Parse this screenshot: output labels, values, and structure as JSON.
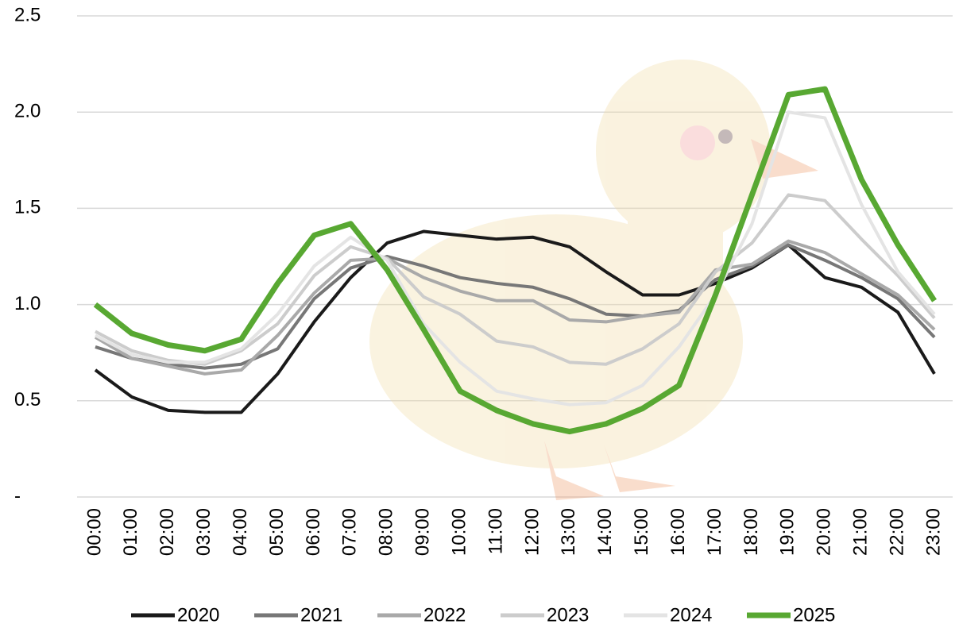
{
  "chart_data": {
    "type": "line",
    "categories": [
      "00:00",
      "01:00",
      "02:00",
      "03:00",
      "04:00",
      "05:00",
      "06:00",
      "07:00",
      "08:00",
      "09:00",
      "10:00",
      "11:00",
      "12:00",
      "13:00",
      "14:00",
      "15:00",
      "16:00",
      "17:00",
      "18:00",
      "19:00",
      "20:00",
      "21:00",
      "22:00",
      "23:00"
    ],
    "series": [
      {
        "name": "2020",
        "color": "#1a1a1a",
        "values": [
          0.66,
          0.52,
          0.45,
          0.44,
          0.44,
          0.64,
          0.91,
          1.14,
          1.32,
          1.38,
          1.36,
          1.34,
          1.35,
          1.3,
          1.17,
          1.05,
          1.05,
          1.11,
          1.19,
          1.31,
          1.14,
          1.09,
          0.96,
          0.64
        ]
      },
      {
        "name": "2021",
        "color": "#777777",
        "values": [
          0.78,
          0.72,
          0.69,
          0.67,
          0.69,
          0.77,
          1.03,
          1.19,
          1.25,
          1.2,
          1.14,
          1.11,
          1.09,
          1.03,
          0.95,
          0.94,
          0.97,
          1.13,
          1.2,
          1.31,
          1.23,
          1.14,
          1.03,
          0.83
        ]
      },
      {
        "name": "2022",
        "color": "#a9a9a9",
        "values": [
          0.83,
          0.72,
          0.68,
          0.64,
          0.66,
          0.84,
          1.06,
          1.23,
          1.24,
          1.14,
          1.07,
          1.02,
          1.02,
          0.92,
          0.91,
          0.94,
          0.96,
          1.18,
          1.21,
          1.33,
          1.27,
          1.16,
          1.05,
          0.87
        ]
      },
      {
        "name": "2023",
        "color": "#cccccc",
        "values": [
          0.86,
          0.76,
          0.71,
          0.69,
          0.76,
          0.9,
          1.15,
          1.3,
          1.24,
          1.04,
          0.95,
          0.81,
          0.78,
          0.7,
          0.69,
          0.77,
          0.9,
          1.17,
          1.32,
          1.57,
          1.54,
          1.34,
          1.15,
          0.93
        ]
      },
      {
        "name": "2024",
        "color": "#e4e4e4",
        "values": [
          0.84,
          0.74,
          0.7,
          0.7,
          0.77,
          0.95,
          1.2,
          1.35,
          1.23,
          0.9,
          0.7,
          0.55,
          0.51,
          0.48,
          0.49,
          0.58,
          0.78,
          1.05,
          1.42,
          2.0,
          1.97,
          1.52,
          1.17,
          0.95
        ]
      },
      {
        "name": "2025",
        "color": "#58a832",
        "values": [
          1.0,
          0.85,
          0.79,
          0.76,
          0.82,
          1.11,
          1.36,
          1.42,
          1.18,
          0.87,
          0.55,
          0.45,
          0.38,
          0.34,
          0.38,
          0.46,
          0.58,
          1.05,
          1.57,
          2.09,
          2.12,
          1.65,
          1.31,
          1.02
        ]
      }
    ],
    "ylim": [
      0,
      2.5
    ],
    "yticks": [
      {
        "value": 0,
        "label": "-"
      },
      0.5,
      {
        "value": 1,
        "label": "1.0"
      },
      1.5,
      {
        "value": 2,
        "label": "2.0"
      },
      2.5
    ],
    "grid": true,
    "legend": "bottom"
  }
}
